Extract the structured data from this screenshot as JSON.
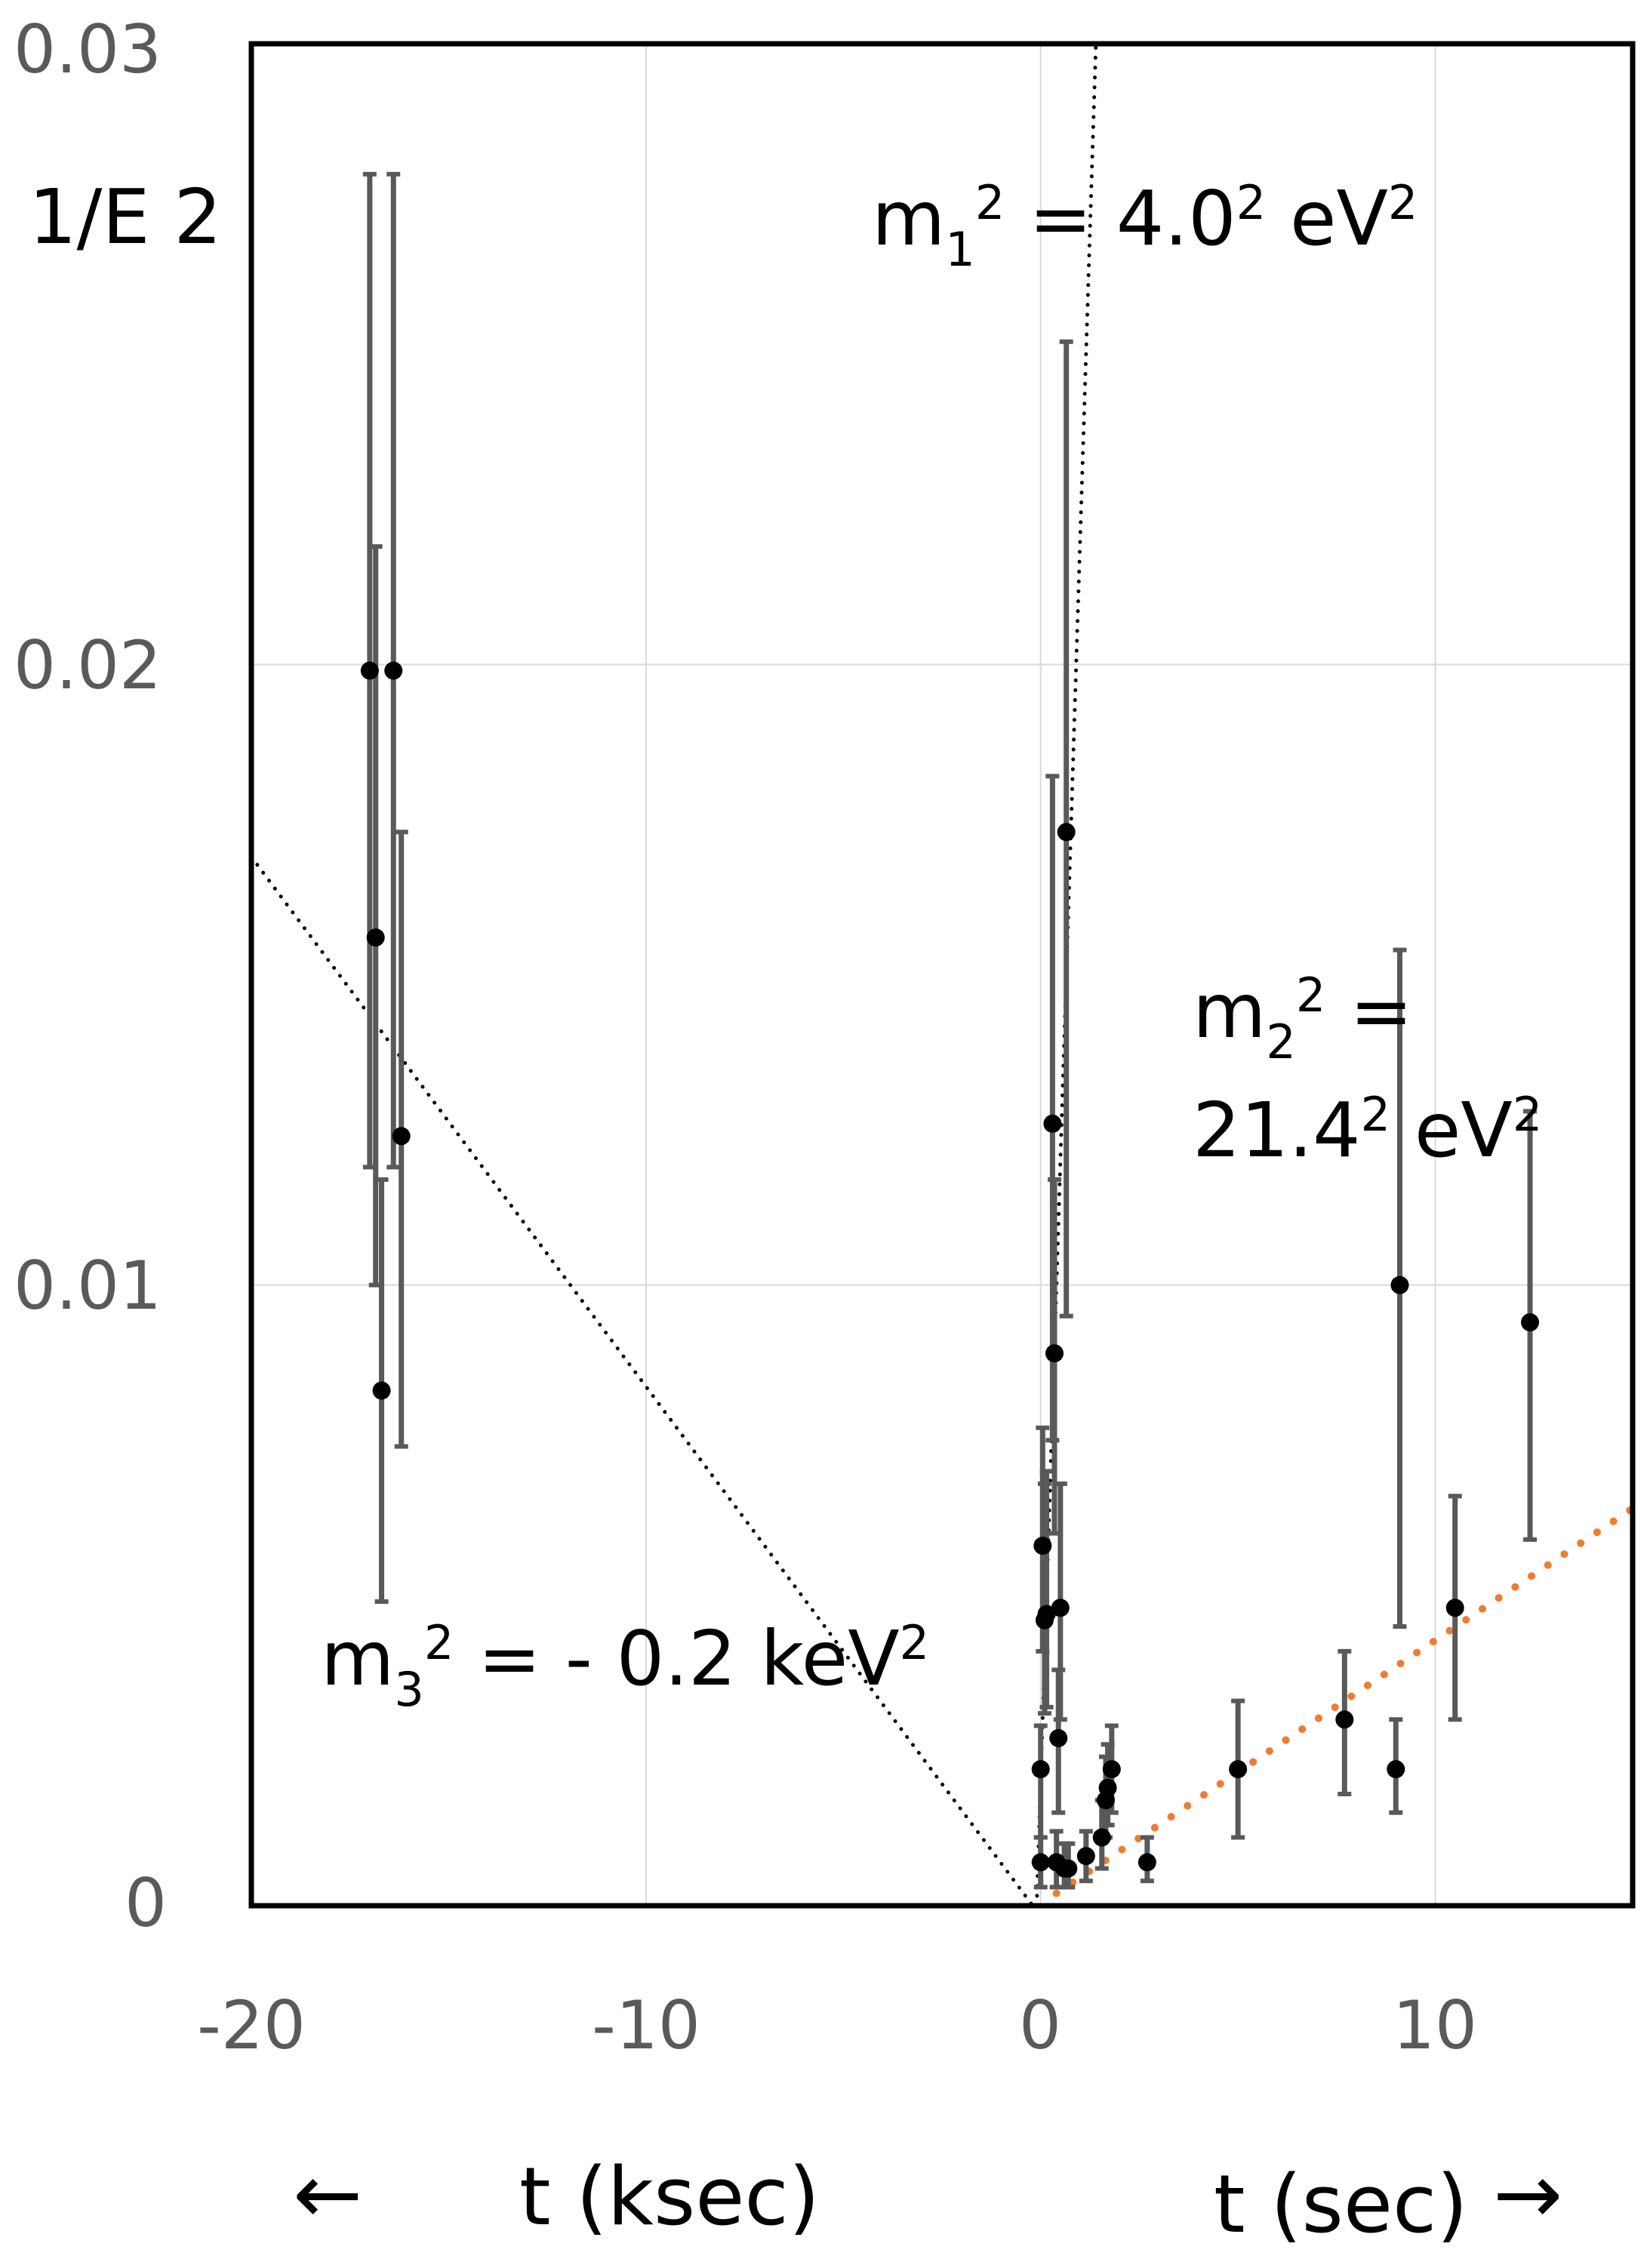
{
  "chart_data": {
    "type": "scatter",
    "ylabel": "1/E 2",
    "xlabel_left": "t (ksec)",
    "xlabel_right": "t (sec)",
    "arrow_left": "←",
    "arrow_right": "→",
    "xlim": [
      -20,
      15
    ],
    "ylim": [
      0,
      0.03
    ],
    "xticks": [
      "-20",
      "-10",
      "0",
      "10"
    ],
    "yticks": [
      "0",
      "0.01",
      "0.02",
      "0.03"
    ],
    "grid": true,
    "annotations": {
      "m1": {
        "base": "m",
        "sub": "1",
        "sup": "2",
        "rest": " = 4.0",
        "rest_sup": "2",
        "unit": " eV",
        "unit_sup": "2"
      },
      "m2": {
        "line1_base": "m",
        "line1_sub": "2",
        "line1_sup": "2",
        "line1_rest": " =",
        "line2": "21.4",
        "line2_sup": "2",
        "line2_unit": " eV",
        "line2_unit_sup": "2"
      },
      "m3": {
        "base": "m",
        "sub": "3",
        "sup": "2",
        "rest": " = - 0.2 keV",
        "rest_sup": "2"
      }
    },
    "points": [
      {
        "x": -17.0,
        "y": 0.0199,
        "ylo": 0.0119,
        "yhi": 0.0279
      },
      {
        "x": -16.85,
        "y": 0.0156,
        "ylo": 0.01,
        "yhi": 0.0219
      },
      {
        "x": -16.7,
        "y": 0.0083,
        "ylo": 0.0049,
        "yhi": 0.0117
      },
      {
        "x": -16.4,
        "y": 0.0199,
        "ylo": 0.0119,
        "yhi": 0.0279
      },
      {
        "x": -16.2,
        "y": 0.0124,
        "ylo": 0.0074,
        "yhi": 0.0173
      },
      {
        "x": 0.0,
        "y": 0.0007,
        "ylo": 0.0003,
        "yhi": 0.0011
      },
      {
        "x": 0.0,
        "y": 0.0022,
        "ylo": 0.0011,
        "yhi": 0.0029
      },
      {
        "x": 0.05,
        "y": 0.0058,
        "ylo": 0.0041,
        "yhi": 0.0077
      },
      {
        "x": 0.1,
        "y": 0.0046,
        "ylo": 0.0031,
        "yhi": 0.0068
      },
      {
        "x": 0.15,
        "y": 0.0047,
        "ylo": 0.0032,
        "yhi": 0.007
      },
      {
        "x": 0.3,
        "y": 0.0126,
        "ylo": 0.0075,
        "yhi": 0.0182
      },
      {
        "x": 0.35,
        "y": 0.0089,
        "ylo": 0.006,
        "yhi": 0.0117
      },
      {
        "x": 0.4,
        "y": 0.0007,
        "ylo": 0.0003,
        "yhi": 0.0012
      },
      {
        "x": 0.45,
        "y": 0.0027,
        "ylo": 0.0015,
        "yhi": 0.0038
      },
      {
        "x": 0.5,
        "y": 0.0048,
        "ylo": 0.003,
        "yhi": 0.0068
      },
      {
        "x": 0.6,
        "y": 0.0006,
        "ylo": 0.0003,
        "yhi": 0.001
      },
      {
        "x": 0.65,
        "y": 0.0173,
        "ylo": 0.0095,
        "yhi": 0.0252
      },
      {
        "x": 0.7,
        "y": 0.0006,
        "ylo": 0.0003,
        "yhi": 0.001
      },
      {
        "x": 1.15,
        "y": 0.0008,
        "ylo": 0.0004,
        "yhi": 0.0012
      },
      {
        "x": 1.55,
        "y": 0.0011,
        "ylo": 0.0006,
        "yhi": 0.0017
      },
      {
        "x": 1.65,
        "y": 0.0017,
        "ylo": 0.0011,
        "yhi": 0.0024
      },
      {
        "x": 1.7,
        "y": 0.0019,
        "ylo": 0.0013,
        "yhi": 0.0026
      },
      {
        "x": 1.8,
        "y": 0.0022,
        "ylo": 0.0015,
        "yhi": 0.0029
      },
      {
        "x": 2.7,
        "y": 0.0007,
        "ylo": 0.0004,
        "yhi": 0.0011
      },
      {
        "x": 5.0,
        "y": 0.0022,
        "ylo": 0.0011,
        "yhi": 0.0033
      },
      {
        "x": 7.7,
        "y": 0.003,
        "ylo": 0.0018,
        "yhi": 0.0041
      },
      {
        "x": 9.0,
        "y": 0.0022,
        "ylo": 0.0015,
        "yhi": 0.003
      },
      {
        "x": 9.1,
        "y": 0.01,
        "ylo": 0.0045,
        "yhi": 0.0154
      },
      {
        "x": 10.5,
        "y": 0.0048,
        "ylo": 0.003,
        "yhi": 0.0066
      },
      {
        "x": 12.4,
        "y": 0.0094,
        "ylo": 0.0059,
        "yhi": 0.0128
      }
    ],
    "fit_lines": [
      {
        "label": "m1",
        "color": "#000000",
        "x": [
          -0.1,
          1.4
        ],
        "y": [
          0.0,
          0.03
        ]
      },
      {
        "label": "m3",
        "color": "#000000",
        "x": [
          -20,
          -0.2
        ],
        "y": [
          0.0169,
          0.0
        ]
      },
      {
        "label": "m2",
        "color": "#ed7d31",
        "x": [
          0.4,
          15
        ],
        "y": [
          0.0002,
          0.0064
        ]
      }
    ],
    "colors": {
      "points": "#000000",
      "errorbars": "#595959",
      "grid": "#d9d9d9",
      "frame": "#000000"
    }
  }
}
